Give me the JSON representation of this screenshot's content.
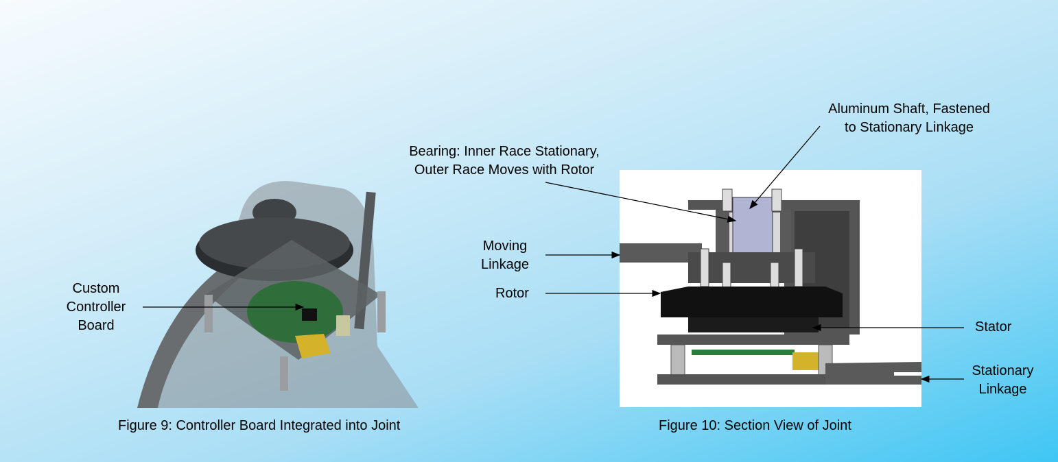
{
  "figure9": {
    "caption": "Figure 9: Controller Board Integrated into Joint",
    "labels": {
      "custom_controller_board": [
        "Custom",
        "Controller",
        "Board"
      ]
    }
  },
  "figure10": {
    "caption": "Figure 10: Section View of Joint",
    "labels": {
      "aluminum_shaft": [
        "Aluminum Shaft, Fastened",
        "to Stationary Linkage"
      ],
      "bearing": [
        "Bearing: Inner Race Stationary,",
        "Outer Race Moves with Rotor"
      ],
      "moving_linkage": [
        "Moving",
        "Linkage"
      ],
      "rotor": "Rotor",
      "stator": "Stator",
      "stationary_linkage": [
        "Stationary",
        "Linkage"
      ]
    }
  }
}
